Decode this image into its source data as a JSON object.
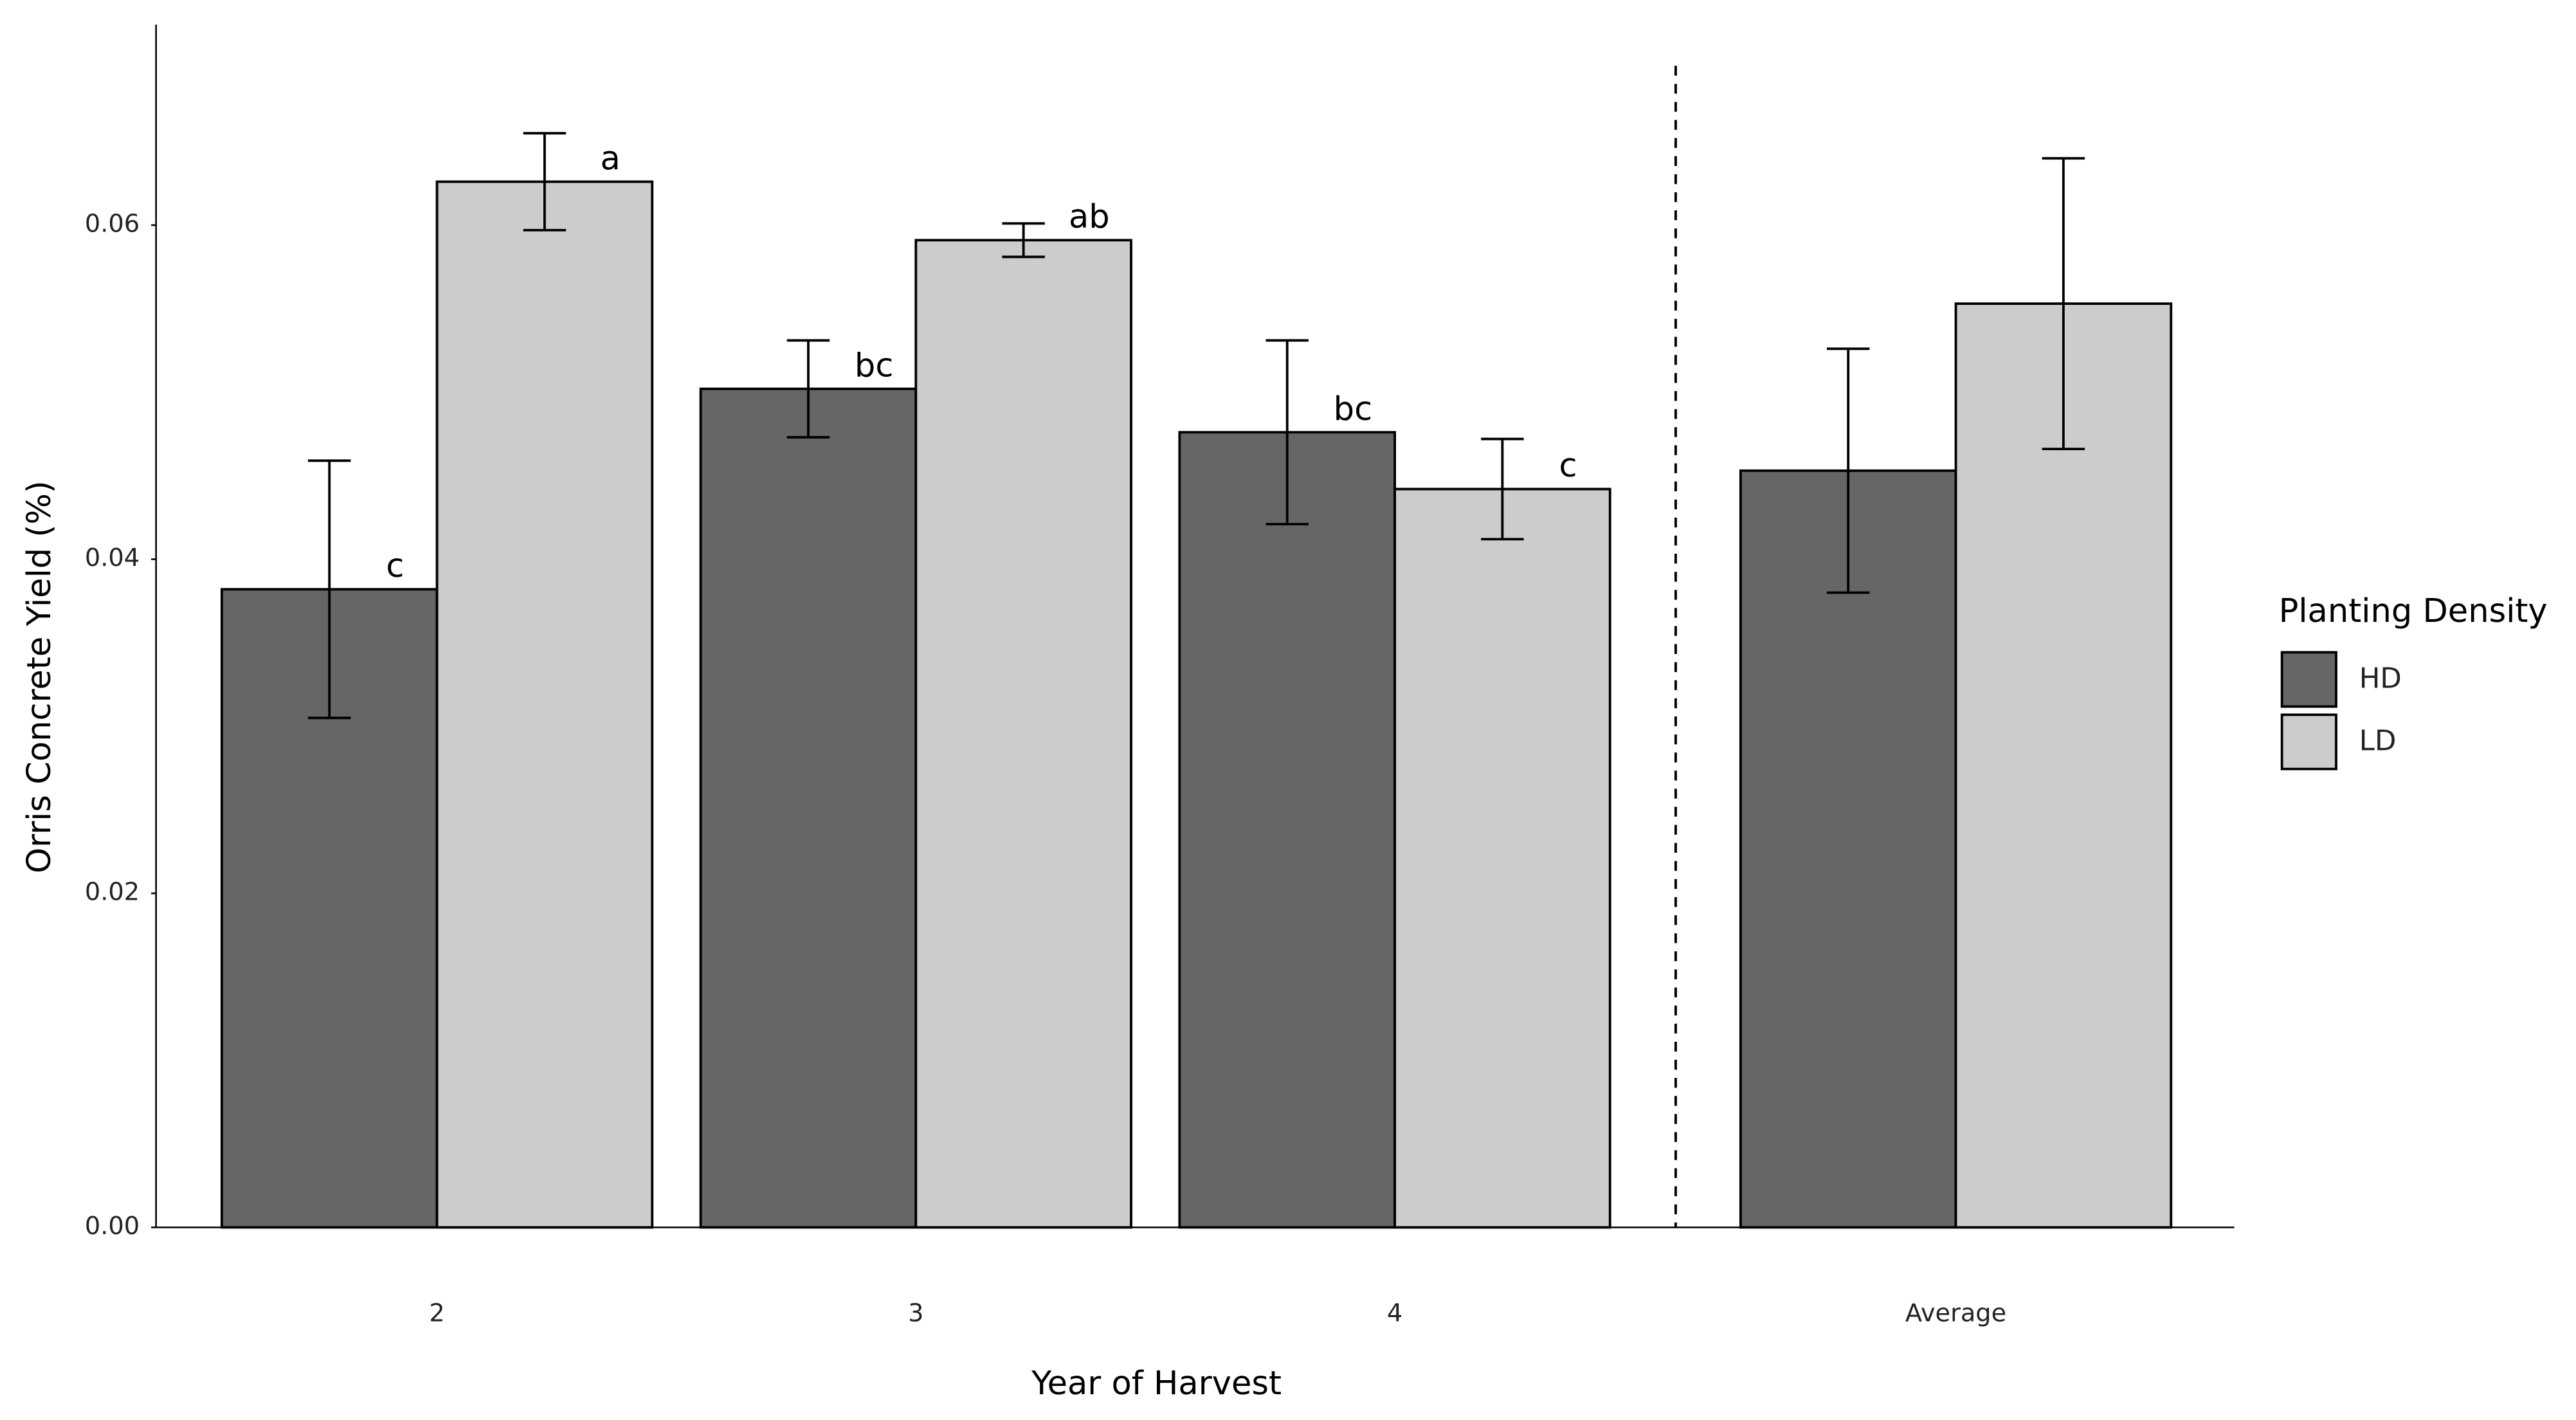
{
  "chart_data": {
    "type": "bar",
    "x_label": "Year of Harvest",
    "y_label": "Orris Concrete Yield (%)",
    "legend_title": "Planting Density",
    "legend_position": "right",
    "grid": false,
    "categories": [
      "2",
      "3",
      "4",
      "Average"
    ],
    "ylim": [
      0,
      0.072
    ],
    "yticks": [
      {
        "value": 0,
        "label": "0.00"
      },
      {
        "value": 0.02,
        "label": "0.02"
      },
      {
        "value": 0.04,
        "label": "0.04"
      },
      {
        "value": 0.06,
        "label": "0.06"
      }
    ],
    "series": [
      {
        "name": "HD",
        "color": "#666666",
        "values": [
          0.0382,
          0.0502,
          0.0476,
          0.0453
        ],
        "errors": [
          0.0077,
          0.0029,
          0.0055,
          0.0073
        ],
        "labels": [
          "c",
          "bc",
          "bc",
          null
        ]
      },
      {
        "name": "LD",
        "color": "#cccccc",
        "values": [
          0.0626,
          0.0591,
          0.0442,
          0.0553
        ],
        "errors": [
          0.0029,
          0.001,
          0.003,
          0.0087
        ],
        "labels": [
          "a",
          "ab",
          "c",
          null
        ]
      }
    ]
  }
}
